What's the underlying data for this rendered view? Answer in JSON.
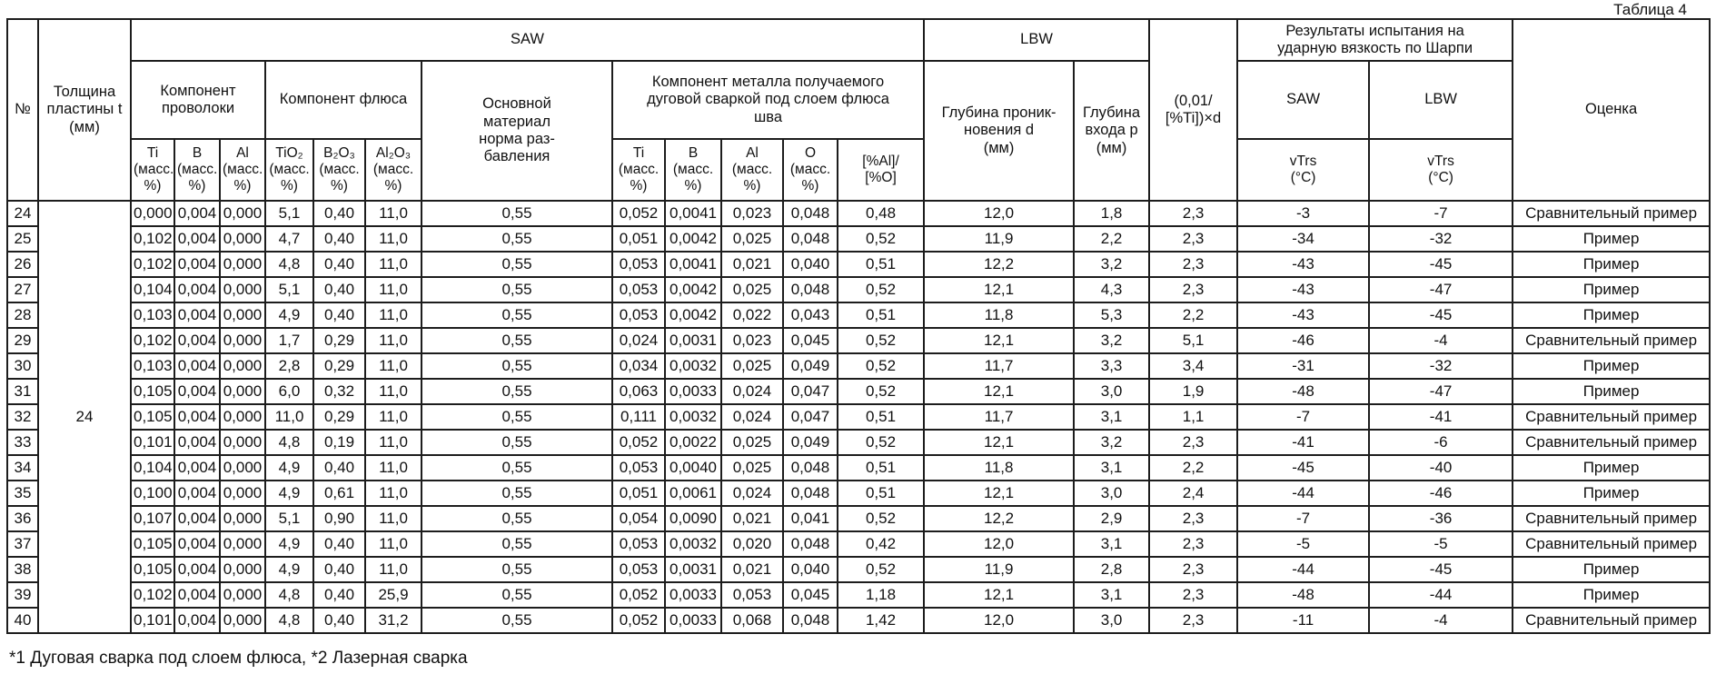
{
  "table_label": "Таблица 4",
  "footnote": "*1 Дуговая сварка под слоем флюса, *2 Лазерная сварка",
  "header": {
    "no": "№",
    "thickness": "Толщина\nпластины t\n(мм)",
    "saw": "SAW",
    "lbw": "LBW",
    "wire_component": "Компонент\nпроволоки",
    "flux_component": "Компонент флюса",
    "base_material": "Основной\nматериал\nнорма раз-\nбавления",
    "weld_metal_component": "Компонент металла получаемого\nдуговой сваркой под слоем флюса\nшва",
    "penetration_depth": "Глубина проник-\nновения d\n(мм)",
    "entry_depth": "Глубина\nвхода p\n(мм)",
    "ti_formula": "(0,01/\n[%Ti])×d",
    "charpy": "Результаты испытания на\nударную вязкость по Шарпи",
    "charpy_saw": "SAW",
    "charpy_lbw": "LBW",
    "vtrs_saw": "vTrs\n(°C)",
    "vtrs_lbw": "vTrs\n(°C)",
    "evaluation": "Оценка",
    "sub": {
      "wire_ti": "Ti\n(масс.\n%)",
      "wire_b": "B\n(масс.\n%)",
      "wire_al": "Al\n(масс.\n%)",
      "flux_tio2": "TiO₂\n(масс.\n%)",
      "flux_b2o3": "B₂O₃\n(масс.\n%)",
      "flux_al2o3": "Al₂O₃\n(масс.\n%)",
      "weld_ti": "Ti\n(масс.\n%)",
      "weld_b": "B\n(масс.\n%)",
      "weld_al": "Al\n(масс.\n%)",
      "weld_o": "O\n(масс.\n%)",
      "weld_al_o": "[%Al]/\n[%O]"
    }
  },
  "thickness_value": "24",
  "column_keys": [
    "no",
    "wire-ti",
    "wire-b",
    "wire-al",
    "flux-tio2",
    "flux-b2o3",
    "flux-al2o3",
    "dilution",
    "weld-ti",
    "weld-b",
    "weld-al",
    "weld-o",
    "al-o-ratio",
    "penetration-d",
    "entry-p",
    "ti-formula",
    "vtrs-saw",
    "vtrs-lbw",
    "evaluation"
  ],
  "rows": [
    [
      "24",
      "0,000",
      "0,004",
      "0,000",
      "5,1",
      "0,40",
      "11,0",
      "0,55",
      "0,052",
      "0,0041",
      "0,023",
      "0,048",
      "0,48",
      "12,0",
      "1,8",
      "2,3",
      "-3",
      "-7",
      "Сравнительный пример"
    ],
    [
      "25",
      "0,102",
      "0,004",
      "0,000",
      "4,7",
      "0,40",
      "11,0",
      "0,55",
      "0,051",
      "0,0042",
      "0,025",
      "0,048",
      "0,52",
      "11,9",
      "2,2",
      "2,3",
      "-34",
      "-32",
      "Пример"
    ],
    [
      "26",
      "0,102",
      "0,004",
      "0,000",
      "4,8",
      "0,40",
      "11,0",
      "0,55",
      "0,053",
      "0,0041",
      "0,021",
      "0,040",
      "0,51",
      "12,2",
      "3,2",
      "2,3",
      "-43",
      "-45",
      "Пример"
    ],
    [
      "27",
      "0,104",
      "0,004",
      "0,000",
      "5,1",
      "0,40",
      "11,0",
      "0,55",
      "0,053",
      "0,0042",
      "0,025",
      "0,048",
      "0,52",
      "12,1",
      "4,3",
      "2,3",
      "-43",
      "-47",
      "Пример"
    ],
    [
      "28",
      "0,103",
      "0,004",
      "0,000",
      "4,9",
      "0,40",
      "11,0",
      "0,55",
      "0,053",
      "0,0042",
      "0,022",
      "0,043",
      "0,51",
      "11,8",
      "5,3",
      "2,2",
      "-43",
      "-45",
      "Пример"
    ],
    [
      "29",
      "0,102",
      "0,004",
      "0,000",
      "1,7",
      "0,29",
      "11,0",
      "0,55",
      "0,024",
      "0,0031",
      "0,023",
      "0,045",
      "0,52",
      "12,1",
      "3,2",
      "5,1",
      "-46",
      "-4",
      "Сравнительный пример"
    ],
    [
      "30",
      "0,103",
      "0,004",
      "0,000",
      "2,8",
      "0,29",
      "11,0",
      "0,55",
      "0,034",
      "0,0032",
      "0,025",
      "0,049",
      "0,52",
      "11,7",
      "3,3",
      "3,4",
      "-31",
      "-32",
      "Пример"
    ],
    [
      "31",
      "0,105",
      "0,004",
      "0,000",
      "6,0",
      "0,32",
      "11,0",
      "0,55",
      "0,063",
      "0,0033",
      "0,024",
      "0,047",
      "0,52",
      "12,1",
      "3,0",
      "1,9",
      "-48",
      "-47",
      "Пример"
    ],
    [
      "32",
      "0,105",
      "0,004",
      "0,000",
      "11,0",
      "0,29",
      "11,0",
      "0,55",
      "0,111",
      "0,0032",
      "0,024",
      "0,047",
      "0,51",
      "11,7",
      "3,1",
      "1,1",
      "-7",
      "-41",
      "Сравнительный пример"
    ],
    [
      "33",
      "0,101",
      "0,004",
      "0,000",
      "4,8",
      "0,19",
      "11,0",
      "0,55",
      "0,052",
      "0,0022",
      "0,025",
      "0,049",
      "0,52",
      "12,1",
      "3,2",
      "2,3",
      "-41",
      "-6",
      "Сравнительный пример"
    ],
    [
      "34",
      "0,104",
      "0,004",
      "0,000",
      "4,9",
      "0,40",
      "11,0",
      "0,55",
      "0,053",
      "0,0040",
      "0,025",
      "0,048",
      "0,51",
      "11,8",
      "3,1",
      "2,2",
      "-45",
      "-40",
      "Пример"
    ],
    [
      "35",
      "0,100",
      "0,004",
      "0,000",
      "4,9",
      "0,61",
      "11,0",
      "0,55",
      "0,051",
      "0,0061",
      "0,024",
      "0,048",
      "0,51",
      "12,1",
      "3,0",
      "2,4",
      "-44",
      "-46",
      "Пример"
    ],
    [
      "36",
      "0,107",
      "0,004",
      "0,000",
      "5,1",
      "0,90",
      "11,0",
      "0,55",
      "0,054",
      "0,0090",
      "0,021",
      "0,041",
      "0,52",
      "12,2",
      "2,9",
      "2,3",
      "-7",
      "-36",
      "Сравнительный пример"
    ],
    [
      "37",
      "0,105",
      "0,004",
      "0,000",
      "4,9",
      "0,40",
      "11,0",
      "0,55",
      "0,053",
      "0,0032",
      "0,020",
      "0,048",
      "0,42",
      "12,0",
      "3,1",
      "2,3",
      "-5",
      "-5",
      "Сравнительный пример"
    ],
    [
      "38",
      "0,105",
      "0,004",
      "0,000",
      "4,9",
      "0,40",
      "11,0",
      "0,55",
      "0,053",
      "0,0031",
      "0,021",
      "0,040",
      "0,52",
      "11,9",
      "2,8",
      "2,3",
      "-44",
      "-45",
      "Пример"
    ],
    [
      "39",
      "0,102",
      "0,004",
      "0,000",
      "4,8",
      "0,40",
      "25,9",
      "0,55",
      "0,052",
      "0,0033",
      "0,053",
      "0,045",
      "1,18",
      "12,1",
      "3,1",
      "2,3",
      "-48",
      "-44",
      "Пример"
    ],
    [
      "40",
      "0,101",
      "0,004",
      "0,000",
      "4,8",
      "0,40",
      "31,2",
      "0,55",
      "0,052",
      "0,0033",
      "0,068",
      "0,048",
      "1,42",
      "12,0",
      "3,0",
      "2,3",
      "-11",
      "-4",
      "Сравнительный пример"
    ]
  ]
}
